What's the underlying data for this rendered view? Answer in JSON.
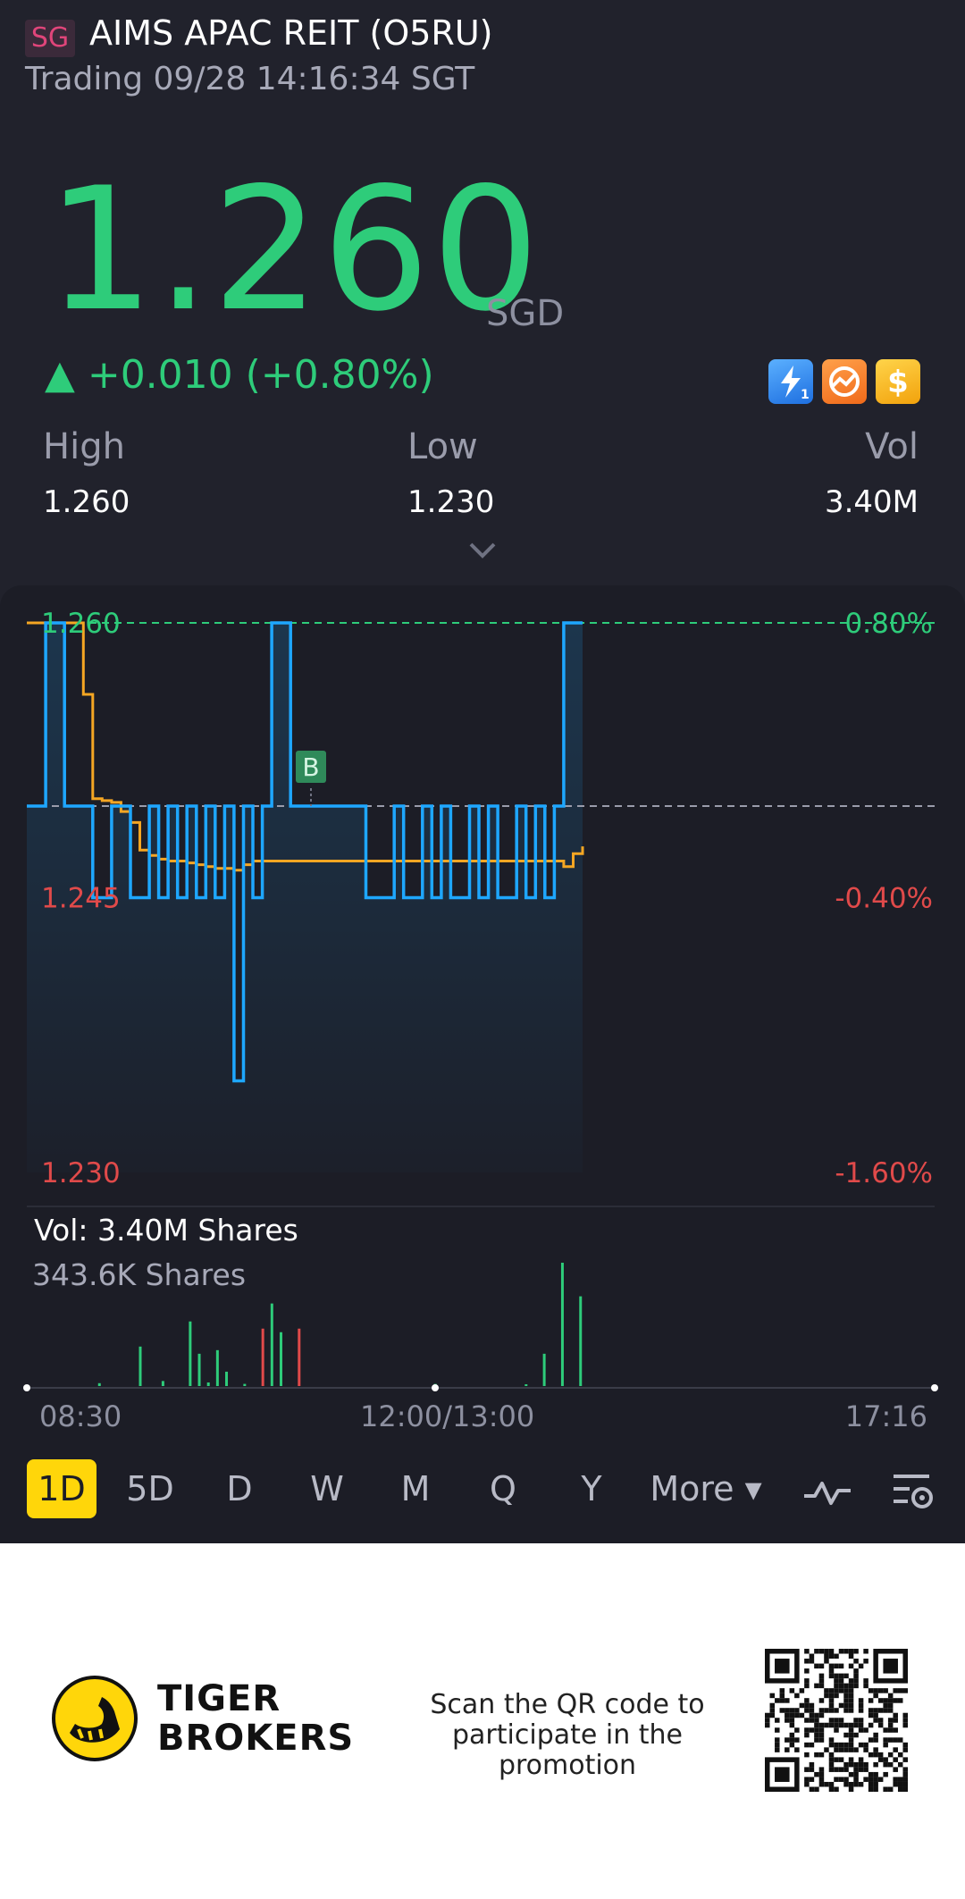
{
  "header": {
    "market": "SG",
    "title": "AIMS APAC REIT (O5RU)",
    "status": "Trading 09/28 14:16:34 SGT"
  },
  "quote": {
    "price": "1.260",
    "currency": "SGD",
    "change": "▲ +0.010 (+0.80%)",
    "feature_icons": [
      "lightning-level1-icon",
      "orange-chart-icon",
      "dollar-icon"
    ]
  },
  "stats": {
    "high_label": "High",
    "high_value": "1.260",
    "low_label": "Low",
    "low_value": "1.230",
    "vol_label": "Vol",
    "vol_value": "3.40M"
  },
  "chart_data": {
    "type": "line",
    "y_axis_left": [
      "1.260",
      "1.245",
      "1.230"
    ],
    "y_axis_right": [
      "0.80%",
      "-0.40%",
      "-1.60%"
    ],
    "ylim": [
      1.23,
      1.26
    ],
    "prev_close": 1.25,
    "marker": "B",
    "x_labels": [
      "08:30",
      "12:00/13:00",
      "17:16"
    ],
    "series": [
      {
        "name": "price",
        "color": "#1ea7ff",
        "values": [
          1.25,
          1.25,
          1.26,
          1.26,
          1.25,
          1.25,
          1.25,
          1.245,
          1.245,
          1.25,
          1.25,
          1.245,
          1.245,
          1.25,
          1.245,
          1.25,
          1.245,
          1.25,
          1.245,
          1.25,
          1.245,
          1.25,
          1.235,
          1.25,
          1.245,
          1.25,
          1.26,
          1.26,
          1.25,
          1.25,
          1.25,
          1.25,
          1.25,
          1.25,
          1.25,
          1.25,
          1.245,
          1.245,
          1.245,
          1.25,
          1.245,
          1.245,
          1.25,
          1.245,
          1.25,
          1.245,
          1.245,
          1.25,
          1.245,
          1.25,
          1.245,
          1.245,
          1.25,
          1.245,
          1.25,
          1.245,
          1.25,
          1.26,
          1.26,
          1.26
        ]
      },
      {
        "name": "average",
        "color": "#f5a623",
        "values": [
          1.26,
          1.26,
          1.26,
          1.26,
          1.26,
          1.26,
          1.2561,
          1.2504,
          1.2503,
          1.2502,
          1.2497,
          1.2491,
          1.2476,
          1.2473,
          1.2471,
          1.247,
          1.247,
          1.2469,
          1.2468,
          1.2467,
          1.2466,
          1.2466,
          1.2465,
          1.2468,
          1.247,
          1.247,
          1.247,
          1.247,
          1.247,
          1.247,
          1.247,
          1.247,
          1.247,
          1.247,
          1.247,
          1.247,
          1.247,
          1.247,
          1.247,
          1.247,
          1.247,
          1.247,
          1.247,
          1.247,
          1.247,
          1.247,
          1.247,
          1.247,
          1.247,
          1.247,
          1.247,
          1.247,
          1.247,
          1.247,
          1.247,
          1.247,
          1.247,
          1.2467,
          1.2474,
          1.2478
        ]
      }
    ],
    "volume": {
      "title": "Vol:  3.40M Shares",
      "max_label": "343.6K Shares",
      "bars": [
        {
          "t": 0.08,
          "v": 8000,
          "c": "up"
        },
        {
          "t": 0.125,
          "v": 110000,
          "c": "up"
        },
        {
          "t": 0.15,
          "v": 14000,
          "c": "up"
        },
        {
          "t": 0.18,
          "v": 180000,
          "c": "up"
        },
        {
          "t": 0.19,
          "v": 90000,
          "c": "up"
        },
        {
          "t": 0.2,
          "v": 10000,
          "c": "up"
        },
        {
          "t": 0.21,
          "v": 100000,
          "c": "up"
        },
        {
          "t": 0.22,
          "v": 40000,
          "c": "up"
        },
        {
          "t": 0.24,
          "v": 6000,
          "c": "up"
        },
        {
          "t": 0.26,
          "v": 160000,
          "c": "down"
        },
        {
          "t": 0.27,
          "v": 230000,
          "c": "up"
        },
        {
          "t": 0.28,
          "v": 150000,
          "c": "up"
        },
        {
          "t": 0.3,
          "v": 160000,
          "c": "down"
        },
        {
          "t": 0.45,
          "v": 6000,
          "c": "up"
        },
        {
          "t": 0.55,
          "v": 5000,
          "c": "up"
        },
        {
          "t": 0.57,
          "v": 90000,
          "c": "up"
        },
        {
          "t": 0.59,
          "v": 343600,
          "c": "up"
        },
        {
          "t": 0.61,
          "v": 250000,
          "c": "up"
        }
      ]
    }
  },
  "periods": [
    "1D",
    "5D",
    "D",
    "W",
    "M",
    "Q",
    "Y",
    "More ▾"
  ],
  "active_period": "1D",
  "tool_icons": [
    "indicator-icon",
    "chart-settings-icon"
  ],
  "footer": {
    "brand_line1": "TIGER",
    "brand_line2": "BROKERS",
    "promo_line1": "Scan the QR code to",
    "promo_line2": "participate in the promotion"
  },
  "colors": {
    "up": "#2ecc7a",
    "down": "#e04a4a",
    "price_line": "#1ea7ff",
    "avg_line": "#f5a623",
    "accent": "#ffd60a"
  }
}
